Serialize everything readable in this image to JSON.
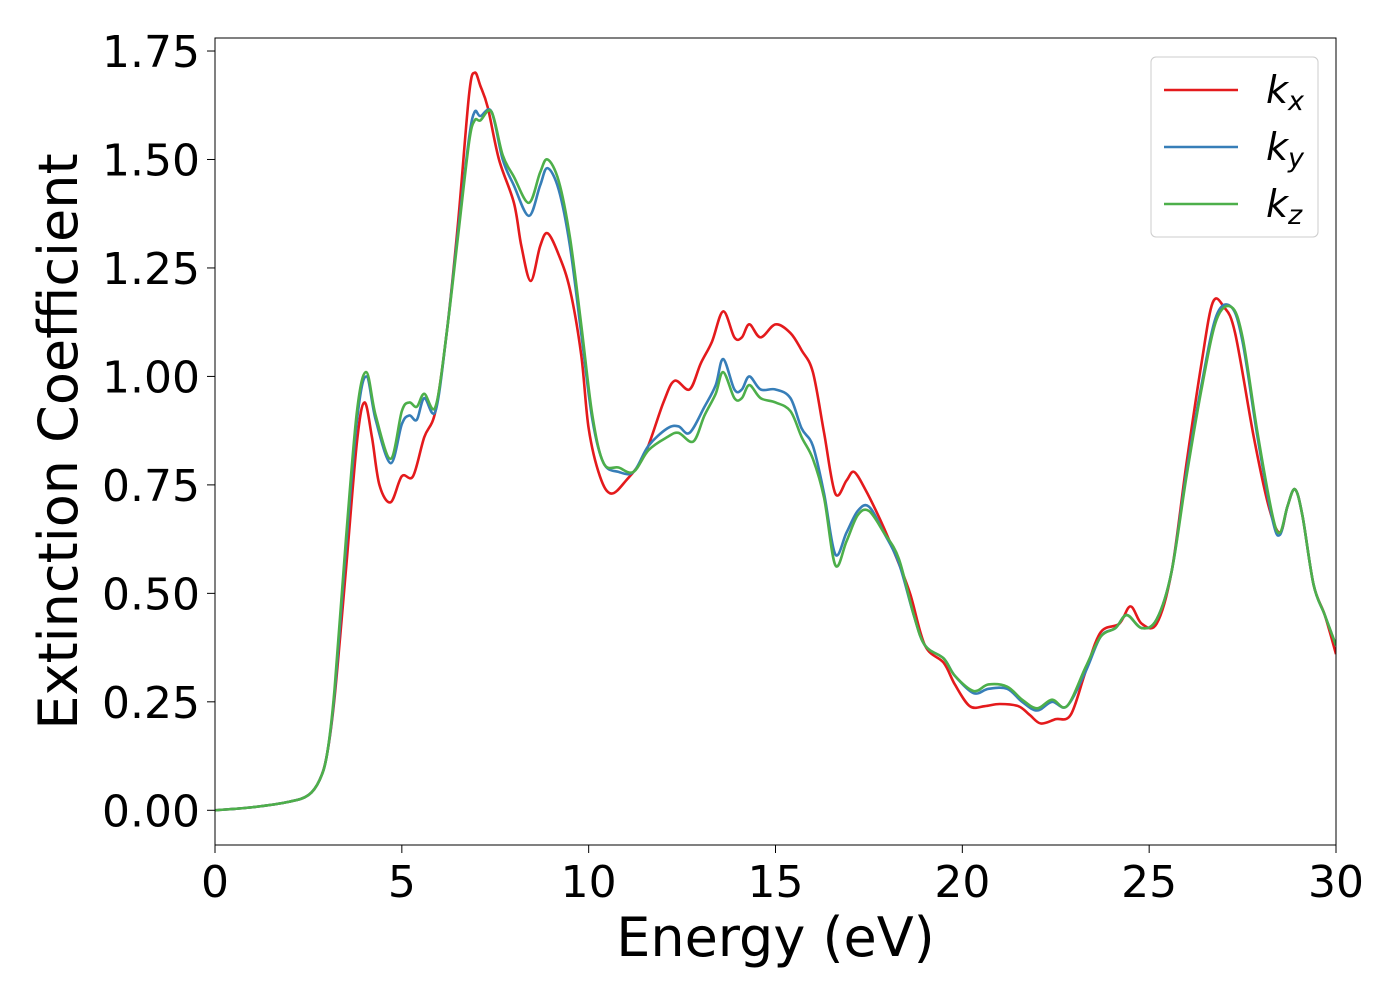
{
  "chart_data": {
    "type": "line",
    "title": "",
    "xlabel": "Energy (eV)",
    "ylabel": "Extinction Coefficient",
    "xlim": [
      0,
      30
    ],
    "ylim": [
      -0.08,
      1.78
    ],
    "xticks": [
      0,
      5,
      10,
      15,
      20,
      25,
      30
    ],
    "yticks": [
      0.0,
      0.25,
      0.5,
      0.75,
      1.0,
      1.25,
      1.5,
      1.75
    ],
    "ytick_decimals": 2,
    "grid": false,
    "legend_position": "top-right",
    "series": [
      {
        "name": "k",
        "subscript": "x",
        "color": "#e41a1c",
        "points": [
          [
            0,
            0
          ],
          [
            1,
            0.007
          ],
          [
            2,
            0.02
          ],
          [
            2.5,
            0.035
          ],
          [
            2.8,
            0.07
          ],
          [
            3.0,
            0.13
          ],
          [
            3.2,
            0.26
          ],
          [
            3.5,
            0.55
          ],
          [
            3.8,
            0.85
          ],
          [
            4.0,
            0.94
          ],
          [
            4.2,
            0.86
          ],
          [
            4.4,
            0.75
          ],
          [
            4.7,
            0.71
          ],
          [
            5.0,
            0.77
          ],
          [
            5.3,
            0.77
          ],
          [
            5.6,
            0.86
          ],
          [
            5.9,
            0.92
          ],
          [
            6.2,
            1.1
          ],
          [
            6.5,
            1.35
          ],
          [
            6.8,
            1.65
          ],
          [
            6.95,
            1.7
          ],
          [
            7.1,
            1.67
          ],
          [
            7.3,
            1.62
          ],
          [
            7.6,
            1.5
          ],
          [
            8.0,
            1.4
          ],
          [
            8.2,
            1.3
          ],
          [
            8.45,
            1.22
          ],
          [
            8.7,
            1.3
          ],
          [
            8.9,
            1.33
          ],
          [
            9.2,
            1.28
          ],
          [
            9.5,
            1.2
          ],
          [
            9.8,
            1.05
          ],
          [
            10.0,
            0.88
          ],
          [
            10.3,
            0.77
          ],
          [
            10.6,
            0.73
          ],
          [
            11.0,
            0.76
          ],
          [
            11.5,
            0.82
          ],
          [
            12.0,
            0.94
          ],
          [
            12.3,
            0.99
          ],
          [
            12.7,
            0.97
          ],
          [
            13.0,
            1.03
          ],
          [
            13.3,
            1.08
          ],
          [
            13.6,
            1.15
          ],
          [
            13.9,
            1.09
          ],
          [
            14.1,
            1.09
          ],
          [
            14.3,
            1.12
          ],
          [
            14.6,
            1.09
          ],
          [
            15.0,
            1.12
          ],
          [
            15.4,
            1.1
          ],
          [
            15.7,
            1.06
          ],
          [
            16.0,
            1.01
          ],
          [
            16.3,
            0.87
          ],
          [
            16.6,
            0.73
          ],
          [
            16.9,
            0.76
          ],
          [
            17.1,
            0.78
          ],
          [
            17.4,
            0.74
          ],
          [
            17.8,
            0.67
          ],
          [
            18.2,
            0.59
          ],
          [
            18.6,
            0.5
          ],
          [
            19.0,
            0.38
          ],
          [
            19.5,
            0.34
          ],
          [
            19.8,
            0.29
          ],
          [
            20.2,
            0.24
          ],
          [
            20.6,
            0.24
          ],
          [
            21.0,
            0.245
          ],
          [
            21.5,
            0.24
          ],
          [
            21.8,
            0.22
          ],
          [
            22.1,
            0.2
          ],
          [
            22.5,
            0.21
          ],
          [
            22.9,
            0.22
          ],
          [
            23.3,
            0.32
          ],
          [
            23.7,
            0.41
          ],
          [
            24.2,
            0.43
          ],
          [
            24.5,
            0.47
          ],
          [
            24.8,
            0.43
          ],
          [
            25.2,
            0.43
          ],
          [
            25.6,
            0.55
          ],
          [
            26.0,
            0.8
          ],
          [
            26.4,
            1.03
          ],
          [
            26.7,
            1.17
          ],
          [
            27.0,
            1.16
          ],
          [
            27.3,
            1.1
          ],
          [
            27.8,
            0.86
          ],
          [
            28.2,
            0.7
          ],
          [
            28.5,
            0.64
          ],
          [
            28.7,
            0.7
          ],
          [
            28.9,
            0.74
          ],
          [
            29.1,
            0.68
          ],
          [
            29.4,
            0.52
          ],
          [
            29.7,
            0.45
          ],
          [
            30,
            0.36
          ]
        ]
      },
      {
        "name": "k",
        "subscript": "y",
        "color": "#377eb8",
        "points": [
          [
            0,
            0
          ],
          [
            1,
            0.007
          ],
          [
            2,
            0.02
          ],
          [
            2.5,
            0.035
          ],
          [
            2.8,
            0.07
          ],
          [
            3.0,
            0.13
          ],
          [
            3.2,
            0.27
          ],
          [
            3.5,
            0.6
          ],
          [
            3.8,
            0.9
          ],
          [
            4.05,
            1.0
          ],
          [
            4.3,
            0.9
          ],
          [
            4.7,
            0.8
          ],
          [
            5.0,
            0.89
          ],
          [
            5.2,
            0.91
          ],
          [
            5.4,
            0.9
          ],
          [
            5.6,
            0.95
          ],
          [
            5.9,
            0.92
          ],
          [
            6.2,
            1.1
          ],
          [
            6.5,
            1.33
          ],
          [
            6.8,
            1.55
          ],
          [
            6.95,
            1.61
          ],
          [
            7.1,
            1.6
          ],
          [
            7.4,
            1.61
          ],
          [
            7.7,
            1.5
          ],
          [
            8.0,
            1.44
          ],
          [
            8.4,
            1.37
          ],
          [
            8.7,
            1.44
          ],
          [
            8.9,
            1.48
          ],
          [
            9.2,
            1.43
          ],
          [
            9.5,
            1.3
          ],
          [
            9.8,
            1.1
          ],
          [
            10.1,
            0.9
          ],
          [
            10.4,
            0.8
          ],
          [
            10.8,
            0.78
          ],
          [
            11.2,
            0.78
          ],
          [
            11.6,
            0.84
          ],
          [
            12.1,
            0.88
          ],
          [
            12.4,
            0.885
          ],
          [
            12.7,
            0.87
          ],
          [
            13.1,
            0.93
          ],
          [
            13.4,
            0.98
          ],
          [
            13.6,
            1.04
          ],
          [
            13.9,
            0.97
          ],
          [
            14.1,
            0.97
          ],
          [
            14.3,
            1.0
          ],
          [
            14.6,
            0.97
          ],
          [
            15.0,
            0.97
          ],
          [
            15.4,
            0.95
          ],
          [
            15.7,
            0.88
          ],
          [
            16.0,
            0.84
          ],
          [
            16.3,
            0.73
          ],
          [
            16.6,
            0.59
          ],
          [
            16.9,
            0.64
          ],
          [
            17.2,
            0.69
          ],
          [
            17.5,
            0.7
          ],
          [
            17.9,
            0.64
          ],
          [
            18.3,
            0.57
          ],
          [
            18.7,
            0.45
          ],
          [
            19.0,
            0.38
          ],
          [
            19.5,
            0.35
          ],
          [
            19.8,
            0.31
          ],
          [
            20.3,
            0.27
          ],
          [
            20.7,
            0.28
          ],
          [
            21.2,
            0.28
          ],
          [
            21.6,
            0.25
          ],
          [
            22.0,
            0.23
          ],
          [
            22.4,
            0.25
          ],
          [
            22.8,
            0.24
          ],
          [
            23.3,
            0.32
          ],
          [
            23.7,
            0.4
          ],
          [
            24.1,
            0.42
          ],
          [
            24.4,
            0.45
          ],
          [
            24.8,
            0.42
          ],
          [
            25.2,
            0.44
          ],
          [
            25.6,
            0.55
          ],
          [
            26.0,
            0.78
          ],
          [
            26.4,
            0.98
          ],
          [
            26.8,
            1.14
          ],
          [
            27.2,
            1.16
          ],
          [
            27.5,
            1.08
          ],
          [
            27.9,
            0.86
          ],
          [
            28.3,
            0.67
          ],
          [
            28.5,
            0.635
          ],
          [
            28.7,
            0.7
          ],
          [
            28.9,
            0.74
          ],
          [
            29.1,
            0.68
          ],
          [
            29.4,
            0.52
          ],
          [
            29.7,
            0.45
          ],
          [
            30,
            0.38
          ]
        ]
      },
      {
        "name": "k",
        "subscript": "z",
        "color": "#4daf4a",
        "points": [
          [
            0,
            0
          ],
          [
            1,
            0.007
          ],
          [
            2,
            0.02
          ],
          [
            2.5,
            0.035
          ],
          [
            2.8,
            0.07
          ],
          [
            3.0,
            0.13
          ],
          [
            3.2,
            0.28
          ],
          [
            3.5,
            0.62
          ],
          [
            3.8,
            0.92
          ],
          [
            4.05,
            1.01
          ],
          [
            4.3,
            0.91
          ],
          [
            4.7,
            0.81
          ],
          [
            5.0,
            0.92
          ],
          [
            5.2,
            0.94
          ],
          [
            5.4,
            0.93
          ],
          [
            5.6,
            0.96
          ],
          [
            5.9,
            0.93
          ],
          [
            6.2,
            1.1
          ],
          [
            6.5,
            1.32
          ],
          [
            6.8,
            1.54
          ],
          [
            6.95,
            1.59
          ],
          [
            7.1,
            1.59
          ],
          [
            7.4,
            1.61
          ],
          [
            7.7,
            1.51
          ],
          [
            8.0,
            1.46
          ],
          [
            8.4,
            1.4
          ],
          [
            8.7,
            1.47
          ],
          [
            8.9,
            1.5
          ],
          [
            9.2,
            1.45
          ],
          [
            9.5,
            1.32
          ],
          [
            9.8,
            1.12
          ],
          [
            10.1,
            0.91
          ],
          [
            10.4,
            0.8
          ],
          [
            10.8,
            0.79
          ],
          [
            11.2,
            0.78
          ],
          [
            11.6,
            0.83
          ],
          [
            12.1,
            0.86
          ],
          [
            12.4,
            0.87
          ],
          [
            12.8,
            0.85
          ],
          [
            13.1,
            0.91
          ],
          [
            13.4,
            0.96
          ],
          [
            13.6,
            1.01
          ],
          [
            13.9,
            0.95
          ],
          [
            14.1,
            0.95
          ],
          [
            14.3,
            0.98
          ],
          [
            14.6,
            0.95
          ],
          [
            15.0,
            0.94
          ],
          [
            15.4,
            0.92
          ],
          [
            15.7,
            0.86
          ],
          [
            16.0,
            0.81
          ],
          [
            16.3,
            0.72
          ],
          [
            16.6,
            0.565
          ],
          [
            16.9,
            0.62
          ],
          [
            17.2,
            0.68
          ],
          [
            17.5,
            0.69
          ],
          [
            17.9,
            0.64
          ],
          [
            18.3,
            0.58
          ],
          [
            18.7,
            0.45
          ],
          [
            19.0,
            0.38
          ],
          [
            19.5,
            0.35
          ],
          [
            19.8,
            0.31
          ],
          [
            20.3,
            0.275
          ],
          [
            20.7,
            0.29
          ],
          [
            21.2,
            0.285
          ],
          [
            21.6,
            0.255
          ],
          [
            22.0,
            0.235
          ],
          [
            22.4,
            0.255
          ],
          [
            22.8,
            0.24
          ],
          [
            23.3,
            0.33
          ],
          [
            23.7,
            0.4
          ],
          [
            24.1,
            0.42
          ],
          [
            24.4,
            0.45
          ],
          [
            24.8,
            0.42
          ],
          [
            25.2,
            0.44
          ],
          [
            25.6,
            0.55
          ],
          [
            26.0,
            0.77
          ],
          [
            26.4,
            0.97
          ],
          [
            26.8,
            1.13
          ],
          [
            27.2,
            1.16
          ],
          [
            27.5,
            1.09
          ],
          [
            27.9,
            0.87
          ],
          [
            28.3,
            0.68
          ],
          [
            28.5,
            0.64
          ],
          [
            28.7,
            0.7
          ],
          [
            28.9,
            0.74
          ],
          [
            29.1,
            0.68
          ],
          [
            29.4,
            0.52
          ],
          [
            29.7,
            0.45
          ],
          [
            30,
            0.38
          ]
        ]
      }
    ]
  }
}
